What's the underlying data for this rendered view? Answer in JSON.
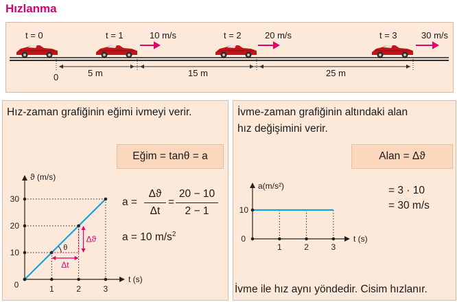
{
  "title": "Hızlanma",
  "track": {
    "times": [
      "t = 0",
      "t = 1",
      "t = 2",
      "t = 3"
    ],
    "speeds": [
      "10 m/s",
      "20 m/s",
      "30 m/s"
    ],
    "distances": [
      "5 m",
      "15 m",
      "25 m"
    ],
    "origin": "0"
  },
  "left": {
    "heading": "Hız-zaman grafiğinin eğimi ivmeyi verir.",
    "box": "Eğim = tanθ = a",
    "f_a": "a =",
    "f_num1": "Δϑ",
    "f_den1": "Δt",
    "f_eq": "=",
    "f_num2": "20 − 10",
    "f_den2": "2 − 1",
    "f_result": "a = 10 m/s",
    "f_result_exp": "2",
    "chart": {
      "ylabel": "ϑ (m/s)",
      "xlabel": "t (s)",
      "theta": "θ",
      "dv": "Δϑ",
      "dt": "Δt"
    }
  },
  "right": {
    "heading_line1": "İvme-zaman grafiğinin altındaki alan",
    "heading_line2": "hız değişimini verir.",
    "box": "Alan = Δϑ",
    "calc1": "= 3 · 10",
    "calc2": "= 30 m/s",
    "footer": "İvme ile hız aynı yöndedir. Cisim hızlanır.",
    "chart": {
      "ylabel": "a(m/s²)",
      "xlabel": "t (s)"
    }
  },
  "chart_data": [
    {
      "type": "line",
      "x": [
        0,
        1,
        2,
        3
      ],
      "y": [
        0,
        10,
        20,
        30
      ],
      "xlabel": "t (s)",
      "ylabel": "ϑ (m/s)",
      "xticks": [
        "0",
        "1",
        "2",
        "3"
      ],
      "yticks": [
        "0",
        "10",
        "20",
        "30"
      ],
      "xlim": [
        0,
        3
      ],
      "ylim": [
        0,
        30
      ],
      "annotations": [
        "θ",
        "Δϑ",
        "Δt"
      ],
      "colors": {
        "line": "#1aa0e0",
        "guides": "#222222",
        "annotations": "#e0006e"
      }
    },
    {
      "type": "line",
      "x": [
        0,
        3
      ],
      "y": [
        10,
        10
      ],
      "xlabel": "t (s)",
      "ylabel": "a(m/s²)",
      "xticks": [
        "0",
        "1",
        "2",
        "3"
      ],
      "yticks": [
        "0",
        "10"
      ],
      "xlim": [
        0,
        3
      ],
      "ylim": [
        0,
        10
      ],
      "colors": {
        "line": "#1aa0e0"
      }
    }
  ],
  "colors": {
    "title": "#d6007a",
    "panel": "#fde9d9",
    "box": "#fbd7bd",
    "arrow": "#e0006e",
    "line": "#1aa0e0"
  }
}
